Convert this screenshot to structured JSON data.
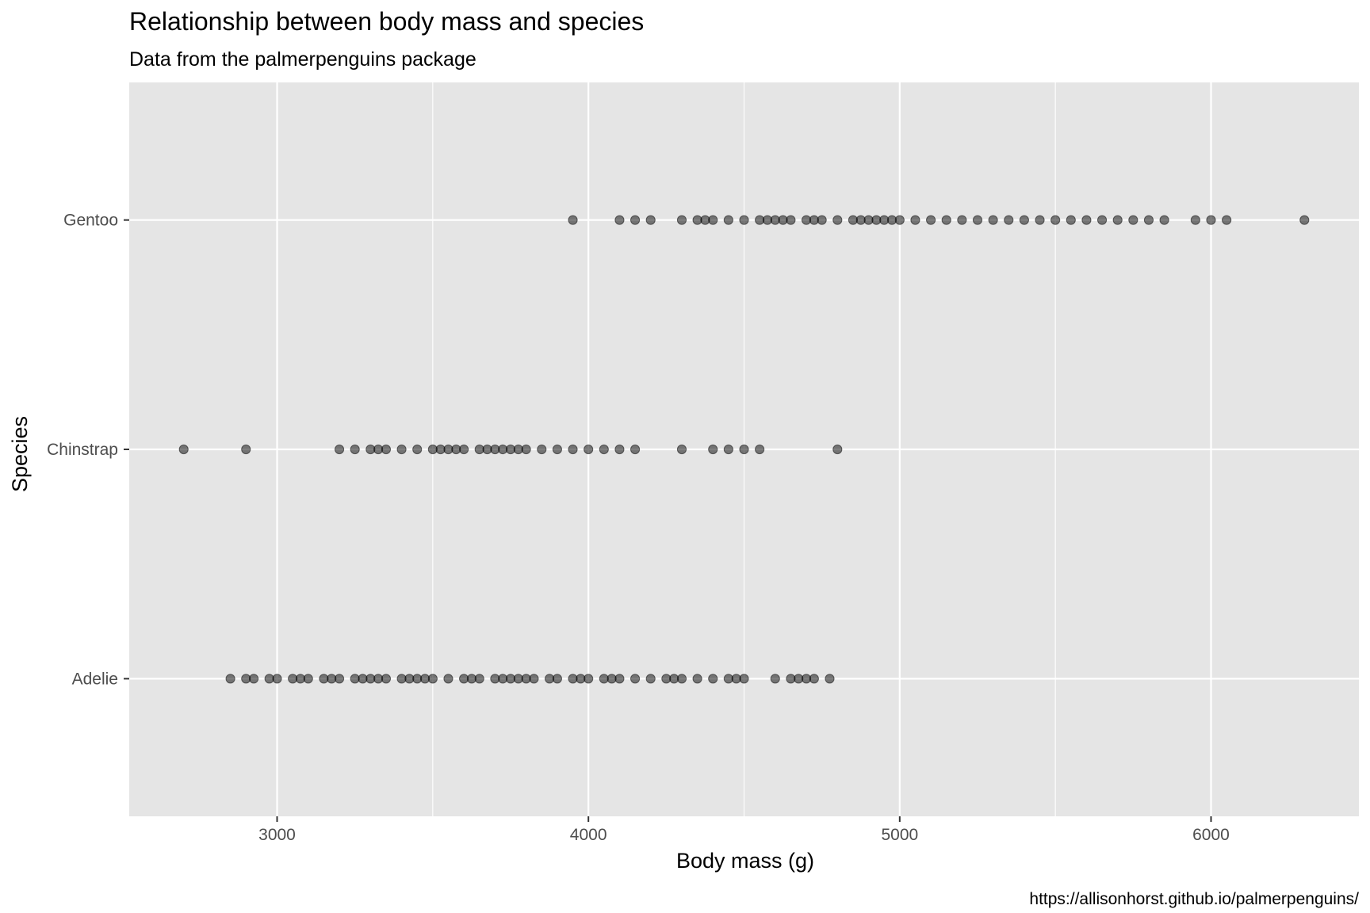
{
  "chart_data": {
    "type": "scatter",
    "title": "Relationship between body mass and species",
    "subtitle": "Data from the palmerpenguins package",
    "xlabel": "Body mass (g)",
    "ylabel": "Species",
    "caption": "https://allisonhorst.github.io/palmerpenguins/",
    "xlim": [
      2525,
      6475
    ],
    "x_ticks": [
      3000,
      4000,
      5000,
      6000
    ],
    "x_tick_labels": [
      "3000",
      "4000",
      "5000",
      "6000"
    ],
    "categories": [
      "Adelie",
      "Chinstrap",
      "Gentoo"
    ],
    "grid": true,
    "legend": "none",
    "colors": {
      "panel_background": "#e5e5e5",
      "grid_line": "#ffffff",
      "point": "#000000",
      "tick_label": "#4d4d4d",
      "axis_title": "#000000"
    },
    "series": [
      {
        "category": "Gentoo",
        "x": [
          3950,
          4100,
          4150,
          4200,
          4300,
          4350,
          4375,
          4400,
          4450,
          4500,
          4550,
          4575,
          4600,
          4625,
          4650,
          4700,
          4725,
          4750,
          4800,
          4850,
          4875,
          4900,
          4925,
          4950,
          4975,
          5000,
          5050,
          5100,
          5150,
          5200,
          5250,
          5300,
          5350,
          5400,
          5450,
          5500,
          5550,
          5600,
          5650,
          5700,
          5750,
          5800,
          5850,
          5950,
          6000,
          6050,
          6300
        ]
      },
      {
        "category": "Chinstrap",
        "x": [
          2700,
          2900,
          3200,
          3250,
          3300,
          3325,
          3350,
          3400,
          3450,
          3500,
          3525,
          3550,
          3575,
          3600,
          3650,
          3675,
          3700,
          3725,
          3750,
          3775,
          3800,
          3850,
          3900,
          3950,
          4000,
          4050,
          4100,
          4150,
          4300,
          4400,
          4450,
          4500,
          4550,
          4800
        ]
      },
      {
        "category": "Adelie",
        "x": [
          2850,
          2900,
          2925,
          2975,
          3000,
          3050,
          3075,
          3100,
          3150,
          3175,
          3200,
          3250,
          3275,
          3300,
          3325,
          3350,
          3400,
          3425,
          3450,
          3475,
          3500,
          3550,
          3600,
          3625,
          3650,
          3700,
          3725,
          3750,
          3775,
          3800,
          3825,
          3875,
          3900,
          3950,
          3975,
          4000,
          4050,
          4075,
          4100,
          4150,
          4200,
          4250,
          4275,
          4300,
          4350,
          4400,
          4450,
          4475,
          4500,
          4600,
          4650,
          4675,
          4700,
          4725,
          4775
        ]
      }
    ]
  }
}
